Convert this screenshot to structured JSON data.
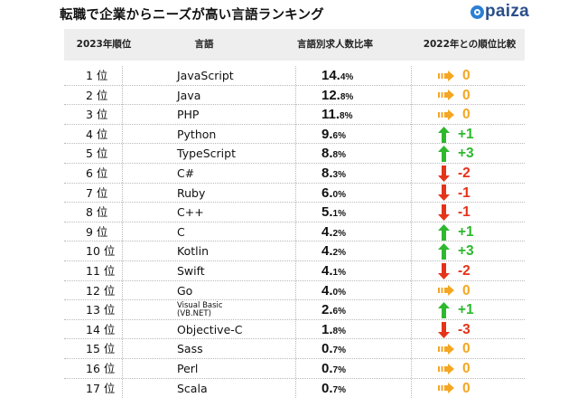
{
  "title": "転職で企業からニーズが高い言語ランキング",
  "brand": "paiza",
  "colors": {
    "up": "#2eb82e",
    "down": "#e5331a",
    "same": "#f5a623",
    "header_bg": "#eeeeee",
    "brand": "#2a7fd6"
  },
  "header": {
    "rank": "2023年順位",
    "language": "言語",
    "rate": "言語別求人数比率",
    "change": "2022年との順位比較"
  },
  "rows": [
    {
      "rank": "1 位",
      "language": "JavaScript",
      "rate_int": "14.",
      "rate_dec": "4%",
      "icon": "right-arrow-icon",
      "delta": "0",
      "dir": "same"
    },
    {
      "rank": "2 位",
      "language": "Java",
      "rate_int": "12.",
      "rate_dec": "8%",
      "icon": "right-arrow-icon",
      "delta": "0",
      "dir": "same"
    },
    {
      "rank": "3 位",
      "language": "PHP",
      "rate_int": "11.",
      "rate_dec": "8%",
      "icon": "right-arrow-icon",
      "delta": "0",
      "dir": "same"
    },
    {
      "rank": "4 位",
      "language": "Python",
      "rate_int": "9.",
      "rate_dec": "6%",
      "icon": "up-arrow-icon",
      "delta": "+1",
      "dir": "up"
    },
    {
      "rank": "5 位",
      "language": "TypeScript",
      "rate_int": "8.",
      "rate_dec": "8%",
      "icon": "up-arrow-icon",
      "delta": "+3",
      "dir": "up"
    },
    {
      "rank": "6 位",
      "language": "C#",
      "rate_int": "8.",
      "rate_dec": "3%",
      "icon": "down-arrow-icon",
      "delta": "-2",
      "dir": "down"
    },
    {
      "rank": "7 位",
      "language": "Ruby",
      "rate_int": "6.",
      "rate_dec": "0%",
      "icon": "down-arrow-icon",
      "delta": "-1",
      "dir": "down"
    },
    {
      "rank": "8 位",
      "language": "C++",
      "rate_int": "5.",
      "rate_dec": "1%",
      "icon": "down-arrow-icon",
      "delta": "-1",
      "dir": "down"
    },
    {
      "rank": "9 位",
      "language": "C",
      "rate_int": "4.",
      "rate_dec": "2%",
      "icon": "up-arrow-icon",
      "delta": "+1",
      "dir": "up"
    },
    {
      "rank": "10 位",
      "language": "Kotlin",
      "rate_int": "4.",
      "rate_dec": "2%",
      "icon": "up-arrow-icon",
      "delta": "+3",
      "dir": "up"
    },
    {
      "rank": "11 位",
      "language": "Swift",
      "rate_int": "4.",
      "rate_dec": "1%",
      "icon": "down-arrow-icon",
      "delta": "-2",
      "dir": "down"
    },
    {
      "rank": "12 位",
      "language": "Go",
      "rate_int": "4.",
      "rate_dec": "0%",
      "icon": "right-arrow-icon",
      "delta": "0",
      "dir": "same"
    },
    {
      "rank": "13 位",
      "language": "Visual Basic\n(VB.NET)",
      "rate_int": "2.",
      "rate_dec": "6%",
      "icon": "up-arrow-icon",
      "delta": "+1",
      "dir": "up"
    },
    {
      "rank": "14 位",
      "language": "Objective-C",
      "rate_int": "1.",
      "rate_dec": "8%",
      "icon": "down-arrow-icon",
      "delta": "-3",
      "dir": "down"
    },
    {
      "rank": "15 位",
      "language": "Sass",
      "rate_int": "0.",
      "rate_dec": "7%",
      "icon": "right-arrow-icon",
      "delta": "0",
      "dir": "same"
    },
    {
      "rank": "16 位",
      "language": "Perl",
      "rate_int": "0.",
      "rate_dec": "7%",
      "icon": "right-arrow-icon",
      "delta": "0",
      "dir": "same"
    },
    {
      "rank": "17 位",
      "language": "Scala",
      "rate_int": "0.",
      "rate_dec": "7%",
      "icon": "right-arrow-icon",
      "delta": "0",
      "dir": "same"
    }
  ]
}
